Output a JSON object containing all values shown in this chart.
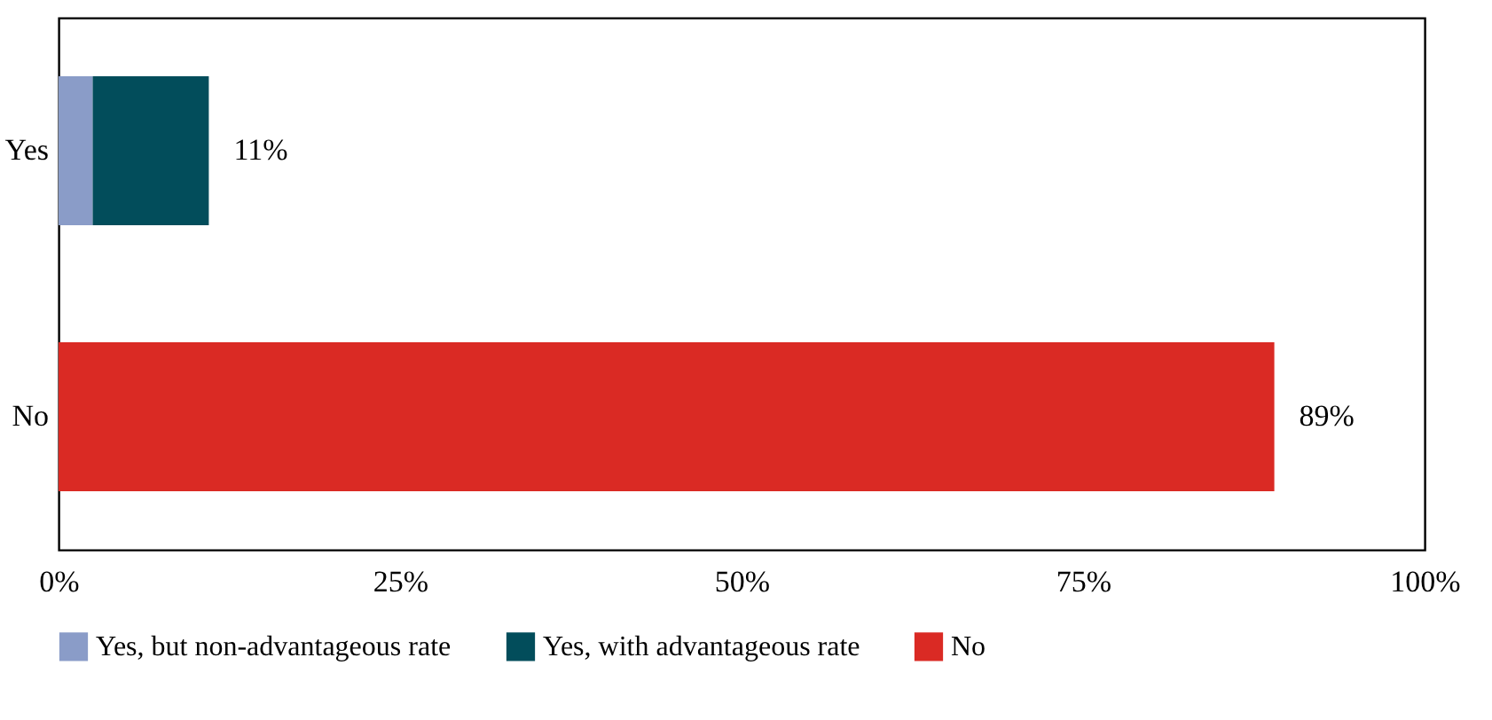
{
  "chart_data": {
    "type": "bar",
    "orientation": "horizontal",
    "stacked": true,
    "categories": [
      "Yes",
      "No"
    ],
    "series": [
      {
        "name": "Yes, but non-advantageous rate",
        "color": "#8a9cc8",
        "values": [
          2.5,
          null
        ]
      },
      {
        "name": "Yes, with advantageous rate",
        "color": "#024d5b",
        "values": [
          8.5,
          null
        ]
      },
      {
        "name": "No",
        "color": "#da2a24",
        "values": [
          null,
          89
        ]
      }
    ],
    "totals": [
      "11%",
      "89%"
    ],
    "xlim": [
      0,
      100
    ],
    "xticks": [
      {
        "value": 0,
        "label": "0%"
      },
      {
        "value": 25,
        "label": "25%"
      },
      {
        "value": 50,
        "label": "50%"
      },
      {
        "value": 75,
        "label": "75%"
      },
      {
        "value": 100,
        "label": "100%"
      }
    ],
    "grid": false,
    "legend": "bottom"
  }
}
